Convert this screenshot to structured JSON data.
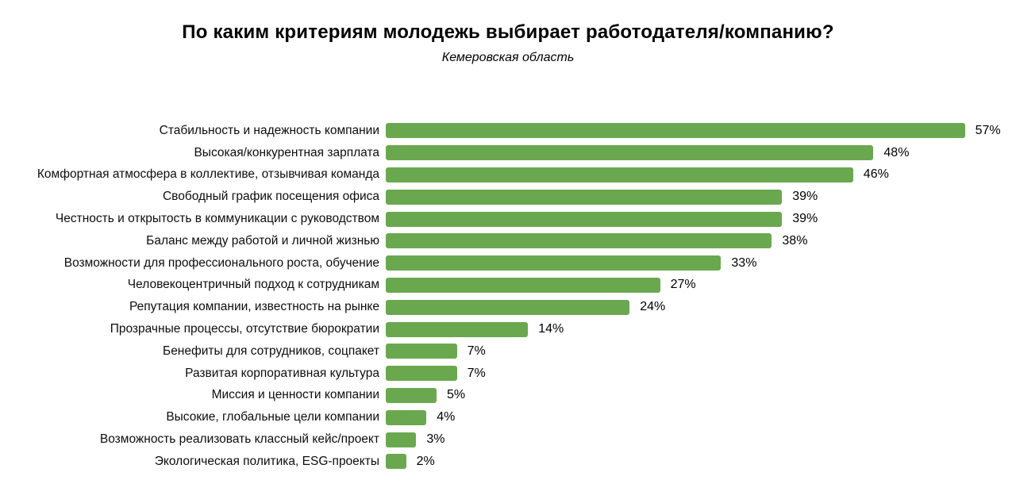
{
  "chart_data": {
    "type": "bar",
    "orientation": "horizontal",
    "title": "По каким критериям молодежь выбирает работодателя/компанию?",
    "subtitle": "Кемеровская область",
    "categories": [
      "Стабильность и надежность компании",
      "Высокая/конкурентная зарплата",
      "Комфортная атмосфера в коллективе, отзывчивая команда",
      "Свободный график посещения офиса",
      "Честность и открытость в коммуникации с руководством",
      "Баланс между работой и личной жизнью",
      "Возможности для профессионального роста, обучение",
      "Человекоцентричный подход к сотрудникам",
      "Репутация компании, известность на рынке",
      "Прозрачные процессы, отсутствие бюрократии",
      "Бенефиты для сотрудников, соцпакет",
      "Развитая корпоративная культура",
      "Миссия и ценности компании",
      "Высокие, глобальные цели компании",
      "Возможность реализовать классный кейс/проект",
      "Экологическая политика, ESG-проекты"
    ],
    "values": [
      57,
      48,
      46,
      39,
      39,
      38,
      33,
      27,
      24,
      14,
      7,
      7,
      5,
      4,
      3,
      2
    ],
    "value_labels": [
      "57%",
      "48%",
      "46%",
      "39%",
      "39%",
      "38%",
      "33%",
      "27%",
      "24%",
      "14%",
      "7%",
      "7%",
      "5%",
      "4%",
      "3%",
      "2%"
    ],
    "value_suffix": "%",
    "bar_color": "#6aa84f",
    "xlim": [
      0,
      60
    ],
    "grid": false,
    "legend": "none",
    "data_labels": "outside-end"
  }
}
